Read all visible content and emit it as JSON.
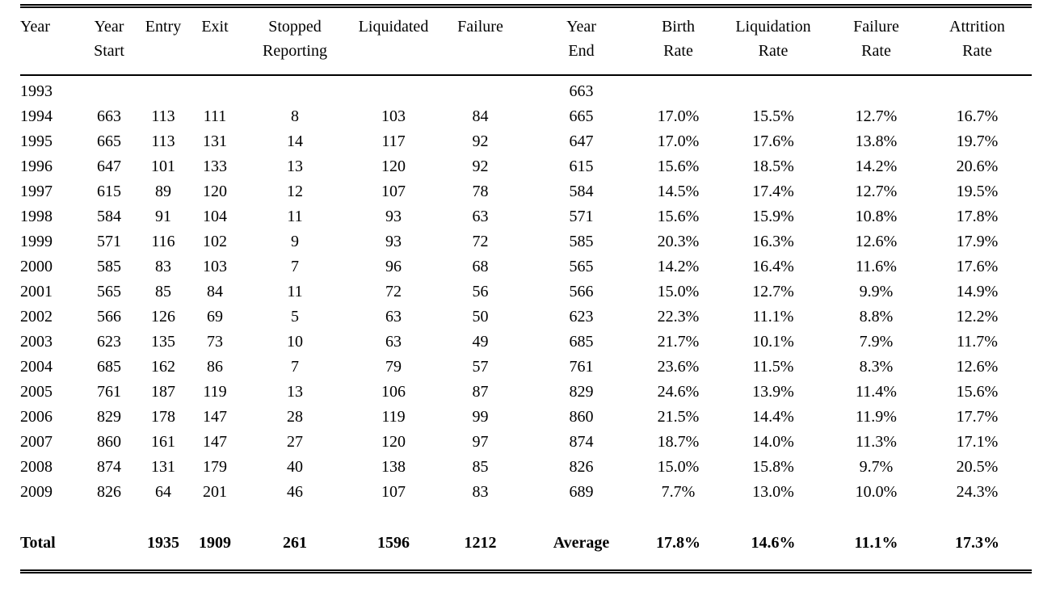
{
  "table": {
    "description": "Fund entry, exit and attrition statistics by year",
    "columns": [
      {
        "key": "year",
        "label_lines": [
          "Year"
        ]
      },
      {
        "key": "year_start",
        "label_lines": [
          "Year",
          "Start"
        ]
      },
      {
        "key": "entry",
        "label_lines": [
          "Entry"
        ]
      },
      {
        "key": "exit",
        "label_lines": [
          "Exit"
        ]
      },
      {
        "key": "stopped_reporting",
        "label_lines": [
          "Stopped",
          "Reporting"
        ]
      },
      {
        "key": "liquidated",
        "label_lines": [
          "Liquidated"
        ]
      },
      {
        "key": "failure",
        "label_lines": [
          "Failure"
        ]
      },
      {
        "key": "year_end",
        "label_lines": [
          "Year",
          "End"
        ]
      },
      {
        "key": "birth_rate",
        "label_lines": [
          "Birth",
          "Rate"
        ]
      },
      {
        "key": "liquidation_rate",
        "label_lines": [
          "Liquidation",
          "Rate"
        ]
      },
      {
        "key": "failure_rate",
        "label_lines": [
          "Failure",
          "Rate"
        ]
      },
      {
        "key": "attrition_rate",
        "label_lines": [
          "Attrition",
          "Rate"
        ]
      }
    ],
    "rows": [
      [
        "1993",
        "",
        "",
        "",
        "",
        "",
        "",
        "663",
        "",
        "",
        "",
        ""
      ],
      [
        "1994",
        "663",
        "113",
        "111",
        "8",
        "103",
        "84",
        "665",
        "17.0%",
        "15.5%",
        "12.7%",
        "16.7%"
      ],
      [
        "1995",
        "665",
        "113",
        "131",
        "14",
        "117",
        "92",
        "647",
        "17.0%",
        "17.6%",
        "13.8%",
        "19.7%"
      ],
      [
        "1996",
        "647",
        "101",
        "133",
        "13",
        "120",
        "92",
        "615",
        "15.6%",
        "18.5%",
        "14.2%",
        "20.6%"
      ],
      [
        "1997",
        "615",
        "89",
        "120",
        "12",
        "107",
        "78",
        "584",
        "14.5%",
        "17.4%",
        "12.7%",
        "19.5%"
      ],
      [
        "1998",
        "584",
        "91",
        "104",
        "11",
        "93",
        "63",
        "571",
        "15.6%",
        "15.9%",
        "10.8%",
        "17.8%"
      ],
      [
        "1999",
        "571",
        "116",
        "102",
        "9",
        "93",
        "72",
        "585",
        "20.3%",
        "16.3%",
        "12.6%",
        "17.9%"
      ],
      [
        "2000",
        "585",
        "83",
        "103",
        "7",
        "96",
        "68",
        "565",
        "14.2%",
        "16.4%",
        "11.6%",
        "17.6%"
      ],
      [
        "2001",
        "565",
        "85",
        "84",
        "11",
        "72",
        "56",
        "566",
        "15.0%",
        "12.7%",
        "9.9%",
        "14.9%"
      ],
      [
        "2002",
        "566",
        "126",
        "69",
        "5",
        "63",
        "50",
        "623",
        "22.3%",
        "11.1%",
        "8.8%",
        "12.2%"
      ],
      [
        "2003",
        "623",
        "135",
        "73",
        "10",
        "63",
        "49",
        "685",
        "21.7%",
        "10.1%",
        "7.9%",
        "11.7%"
      ],
      [
        "2004",
        "685",
        "162",
        "86",
        "7",
        "79",
        "57",
        "761",
        "23.6%",
        "11.5%",
        "8.3%",
        "12.6%"
      ],
      [
        "2005",
        "761",
        "187",
        "119",
        "13",
        "106",
        "87",
        "829",
        "24.6%",
        "13.9%",
        "11.4%",
        "15.6%"
      ],
      [
        "2006",
        "829",
        "178",
        "147",
        "28",
        "119",
        "99",
        "860",
        "21.5%",
        "14.4%",
        "11.9%",
        "17.7%"
      ],
      [
        "2007",
        "860",
        "161",
        "147",
        "27",
        "120",
        "97",
        "874",
        "18.7%",
        "14.0%",
        "11.3%",
        "17.1%"
      ],
      [
        "2008",
        "874",
        "131",
        "179",
        "40",
        "138",
        "85",
        "826",
        "15.0%",
        "15.8%",
        "9.7%",
        "20.5%"
      ],
      [
        "2009",
        "826",
        "64",
        "201",
        "46",
        "107",
        "83",
        "689",
        "7.7%",
        "13.0%",
        "10.0%",
        "24.3%"
      ]
    ],
    "total_row": [
      "Total",
      "",
      "1935",
      "1909",
      "261",
      "1596",
      "1212",
      "Average",
      "17.8%",
      "14.6%",
      "11.1%",
      "17.3%"
    ]
  }
}
